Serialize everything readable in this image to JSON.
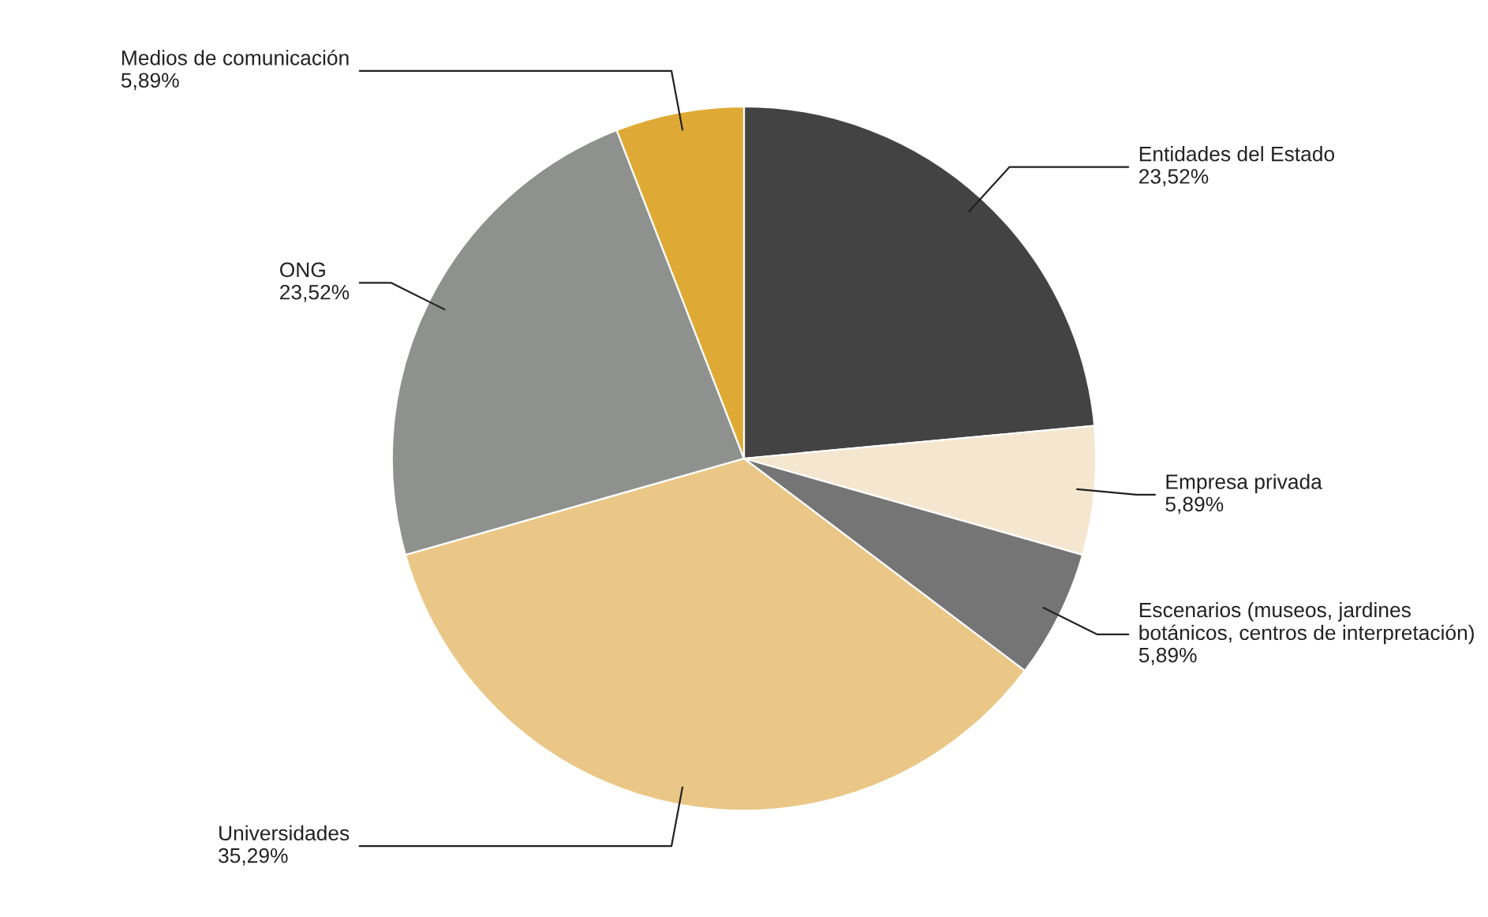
{
  "chart_data": {
    "type": "pie",
    "categories": [
      "Entidades del Estado",
      "Empresa privada",
      "Escenarios (museos, jardines\nbotánicos, centros de interpretación)",
      "Universidades",
      "ONG",
      "Medios de comunicación"
    ],
    "values": [
      23.52,
      5.89,
      5.89,
      35.29,
      23.52,
      5.89
    ],
    "value_labels": [
      "23,52%",
      "5,89%",
      "5,89%",
      "35,29%",
      "23,52%",
      "5,89%"
    ],
    "colors": [
      "#434343",
      "#f5e6cf",
      "#757575",
      "#eac786",
      "#8f918f",
      "#dea935"
    ],
    "legend": false
  }
}
